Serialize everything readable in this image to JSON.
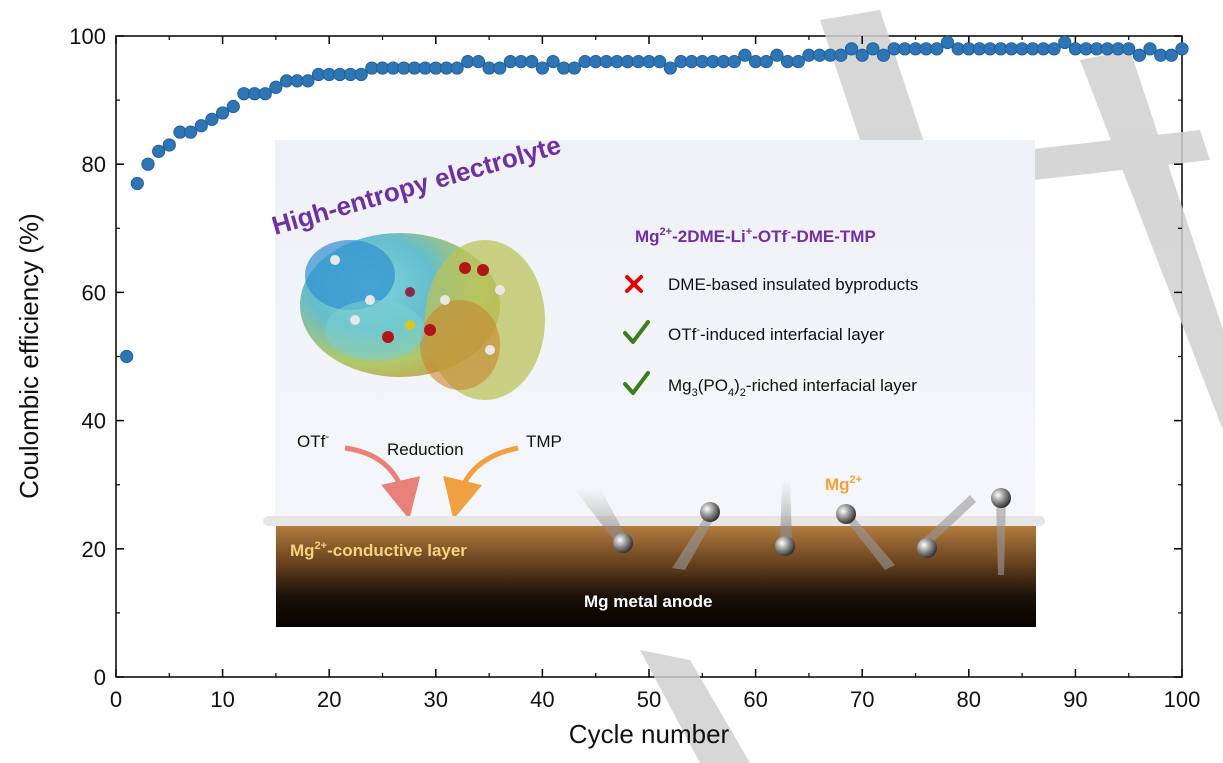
{
  "chart_data": {
    "type": "scatter",
    "xlabel": "Cycle number",
    "ylabel": "Coulombic efficiency (%)",
    "xlim": [
      0,
      100
    ],
    "ylim": [
      0,
      100
    ],
    "x_ticks": [
      "0",
      "10",
      "20",
      "30",
      "40",
      "50",
      "60",
      "70",
      "80",
      "90",
      "100"
    ],
    "y_ticks": [
      "0",
      "20",
      "40",
      "60",
      "80",
      "100"
    ],
    "grid": false,
    "marker_color": "#2e75b6",
    "x": [
      1,
      2,
      3,
      4,
      5,
      6,
      7,
      8,
      9,
      10,
      11,
      12,
      13,
      14,
      15,
      16,
      17,
      18,
      19,
      20,
      21,
      22,
      23,
      24,
      25,
      26,
      27,
      28,
      29,
      30,
      31,
      32,
      33,
      34,
      35,
      36,
      37,
      38,
      39,
      40,
      41,
      42,
      43,
      44,
      45,
      46,
      47,
      48,
      49,
      50,
      51,
      52,
      53,
      54,
      55,
      56,
      57,
      58,
      59,
      60,
      61,
      62,
      63,
      64,
      65,
      66,
      67,
      68,
      69,
      70,
      71,
      72,
      73,
      74,
      75,
      76,
      77,
      78,
      79,
      80,
      81,
      82,
      83,
      84,
      85,
      86,
      87,
      88,
      89,
      90,
      91,
      92,
      93,
      94,
      95,
      96,
      97,
      98,
      99,
      100
    ],
    "y": [
      50,
      77,
      80,
      82,
      83,
      85,
      85,
      86,
      87,
      88,
      89,
      91,
      91,
      91,
      92,
      93,
      93,
      93,
      94,
      94,
      94,
      94,
      94,
      95,
      95,
      95,
      95,
      95,
      95,
      95,
      95,
      95,
      96,
      96,
      95,
      95,
      96,
      96,
      96,
      95,
      96,
      95,
      95,
      96,
      96,
      96,
      96,
      96,
      96,
      96,
      96,
      95,
      96,
      96,
      96,
      96,
      96,
      96,
      97,
      96,
      96,
      97,
      96,
      96,
      97,
      97,
      97,
      97,
      98,
      97,
      98,
      97,
      98,
      98,
      98,
      98,
      98,
      99,
      98,
      98,
      98,
      98,
      98,
      98,
      98,
      98,
      98,
      98,
      99,
      98,
      98,
      98,
      98,
      98,
      98,
      97,
      98,
      97,
      97,
      98
    ]
  },
  "inset": {
    "title": "High-entropy electrolyte",
    "formula": {
      "p1": "Mg",
      "sup1": "2+",
      "p2": "-2DME-Li",
      "sup2": "+",
      "p3": "-OTf",
      "sup3": "-",
      "p4": "-DME-TMP"
    },
    "items": [
      {
        "status": "cross",
        "text": "DME-based insulated byproducts"
      },
      {
        "status": "check",
        "text_a": "OTf",
        "sup": "-",
        "text_b": "-induced interfacial layer"
      },
      {
        "status": "check",
        "text_a": "Mg",
        "sub1": "3",
        "text_b": "(PO",
        "sub2": "4",
        "text_c": ")",
        "sub3": "2",
        "text_d": "-riched interfacial layer"
      }
    ],
    "otf": {
      "base": "OTf",
      "sup": "-"
    },
    "reduction": "Reduction",
    "tmp": "TMP",
    "mg_ion": {
      "base": "Mg",
      "sup": "2+"
    },
    "layer": {
      "base": "Mg",
      "sup": "2+",
      "rest": "-conductive layer"
    },
    "anode": "Mg metal anode",
    "colors": {
      "title": "#7030a0",
      "cross": "#e00000",
      "check": "#3c7d22",
      "mg_ion": "#f4a13c",
      "layer_text": "#f7d27a"
    }
  }
}
